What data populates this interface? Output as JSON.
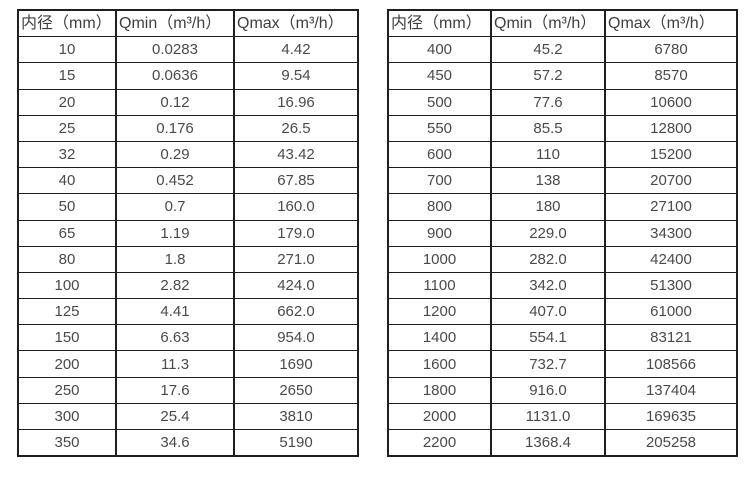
{
  "colors": {
    "border": "#1f1f1f",
    "header_text": "#3f3f3f",
    "cell_text": "#4a4a4a",
    "background": "#ffffff"
  },
  "tables": [
    {
      "name": "flow-range-small-diameters",
      "headers": [
        "内径（mm）",
        "Qmin（m³/h）",
        "Qmax（m³/h）"
      ],
      "rows": [
        [
          "10",
          "0.0283",
          "4.42"
        ],
        [
          "15",
          "0.0636",
          "9.54"
        ],
        [
          "20",
          "0.12",
          "16.96"
        ],
        [
          "25",
          "0.176",
          "26.5"
        ],
        [
          "32",
          "0.29",
          "43.42"
        ],
        [
          "40",
          "0.452",
          "67.85"
        ],
        [
          "50",
          "0.7",
          "160.0"
        ],
        [
          "65",
          "1.19",
          "179.0"
        ],
        [
          "80",
          "1.8",
          "271.0"
        ],
        [
          "100",
          "2.82",
          "424.0"
        ],
        [
          "125",
          "4.41",
          "662.0"
        ],
        [
          "150",
          "6.63",
          "954.0"
        ],
        [
          "200",
          "11.3",
          "1690"
        ],
        [
          "250",
          "17.6",
          "2650"
        ],
        [
          "300",
          "25.4",
          "3810"
        ],
        [
          "350",
          "34.6",
          "5190"
        ]
      ]
    },
    {
      "name": "flow-range-large-diameters",
      "headers": [
        "内径（mm）",
        "Qmin（m³/h）",
        "Qmax（m³/h）"
      ],
      "rows": [
        [
          "400",
          "45.2",
          "6780"
        ],
        [
          "450",
          "57.2",
          "8570"
        ],
        [
          "500",
          "77.6",
          "10600"
        ],
        [
          "550",
          "85.5",
          "12800"
        ],
        [
          "600",
          "110",
          "15200"
        ],
        [
          "700",
          "138",
          "20700"
        ],
        [
          "800",
          "180",
          "27100"
        ],
        [
          "900",
          "229.0",
          "34300"
        ],
        [
          "1000",
          "282.0",
          "42400"
        ],
        [
          "1100",
          "342.0",
          "51300"
        ],
        [
          "1200",
          "407.0",
          "61000"
        ],
        [
          "1400",
          "554.1",
          "83121"
        ],
        [
          "1600",
          "732.7",
          "108566"
        ],
        [
          "1800",
          "916.0",
          "137404"
        ],
        [
          "2000",
          "1131.0",
          "169635"
        ],
        [
          "2200",
          "1368.4",
          "205258"
        ]
      ]
    }
  ]
}
